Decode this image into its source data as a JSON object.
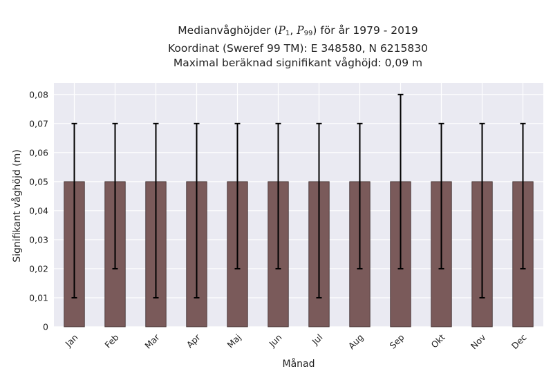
{
  "chart_data": {
    "type": "bar",
    "title": {
      "line1_prefix": "Medianvåghöjder (",
      "p_letter": "P",
      "p1_sub": "1",
      "sep": ", ",
      "p99_sub": "99",
      "line1_suffix": ") för år 1979 - 2019",
      "line2": "Koordinat (Sweref 99 TM): E 348580, N 6215830",
      "line3": "Maximal beräknad signifikant våghöjd: 0,09 m"
    },
    "xlabel": "Månad",
    "ylabel": "Signifikant våghöjd (m)",
    "categories": [
      "Jan",
      "Feb",
      "Mar",
      "Apr",
      "Maj",
      "Jun",
      "Jul",
      "Aug",
      "Sep",
      "Okt",
      "Nov",
      "Dec"
    ],
    "series": [
      {
        "values": [
          0.05,
          0.05,
          0.05,
          0.05,
          0.05,
          0.05,
          0.05,
          0.05,
          0.05,
          0.05,
          0.05,
          0.05
        ],
        "lower": [
          0.01,
          0.02,
          0.01,
          0.01,
          0.02,
          0.02,
          0.01,
          0.02,
          0.02,
          0.02,
          0.01,
          0.02
        ],
        "upper": [
          0.07,
          0.07,
          0.07,
          0.07,
          0.07,
          0.07,
          0.07,
          0.07,
          0.08,
          0.07,
          0.07,
          0.07
        ]
      }
    ],
    "yticks": [
      0,
      0.01,
      0.02,
      0.03,
      0.04,
      0.05,
      0.06,
      0.07,
      0.08
    ],
    "ytick_labels": [
      "0",
      "0,01",
      "0,02",
      "0,03",
      "0,04",
      "0,05",
      "0,06",
      "0,07",
      "0,08"
    ],
    "ylim": [
      0,
      0.084
    ],
    "grid": true,
    "colors": {
      "bar": "#7a5a5a",
      "bar_edge": "#3a2a2a",
      "errorbar": "#000000",
      "plot_background": "#eaeaf2",
      "grid": "#ffffff"
    }
  }
}
